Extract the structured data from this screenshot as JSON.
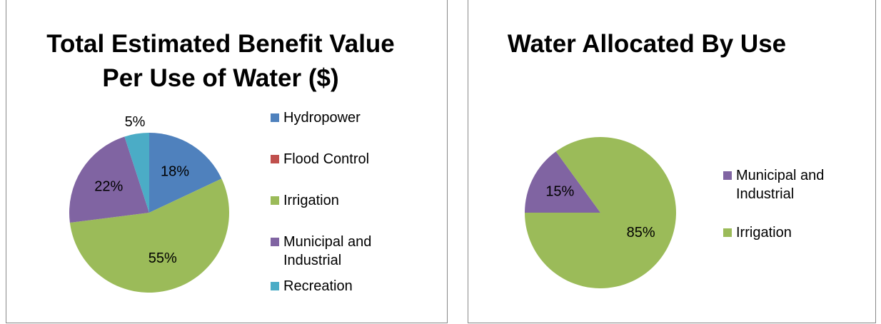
{
  "chart_data": [
    {
      "type": "pie",
      "title": "Total Estimated Benefit Value Per Use of Water ($)",
      "categories": [
        "Hydropower",
        "Flood Control",
        "Irrigation",
        "Municipal and Industrial",
        "Recreation"
      ],
      "values": [
        18,
        0,
        55,
        22,
        5
      ],
      "value_labels": [
        "18%",
        null,
        "55%",
        "22%",
        "5%"
      ],
      "colors": [
        "#4f81bd",
        "#c0504d",
        "#9bbb59",
        "#8064a2",
        "#4bacc6"
      ]
    },
    {
      "type": "pie",
      "title": "Water Allocated By Use",
      "categories": [
        "Municipal and Industrial",
        "Irrigation"
      ],
      "values": [
        15,
        85
      ],
      "value_labels": [
        "15%",
        "85%"
      ],
      "colors": [
        "#8064a2",
        "#9bbb59"
      ]
    }
  ]
}
